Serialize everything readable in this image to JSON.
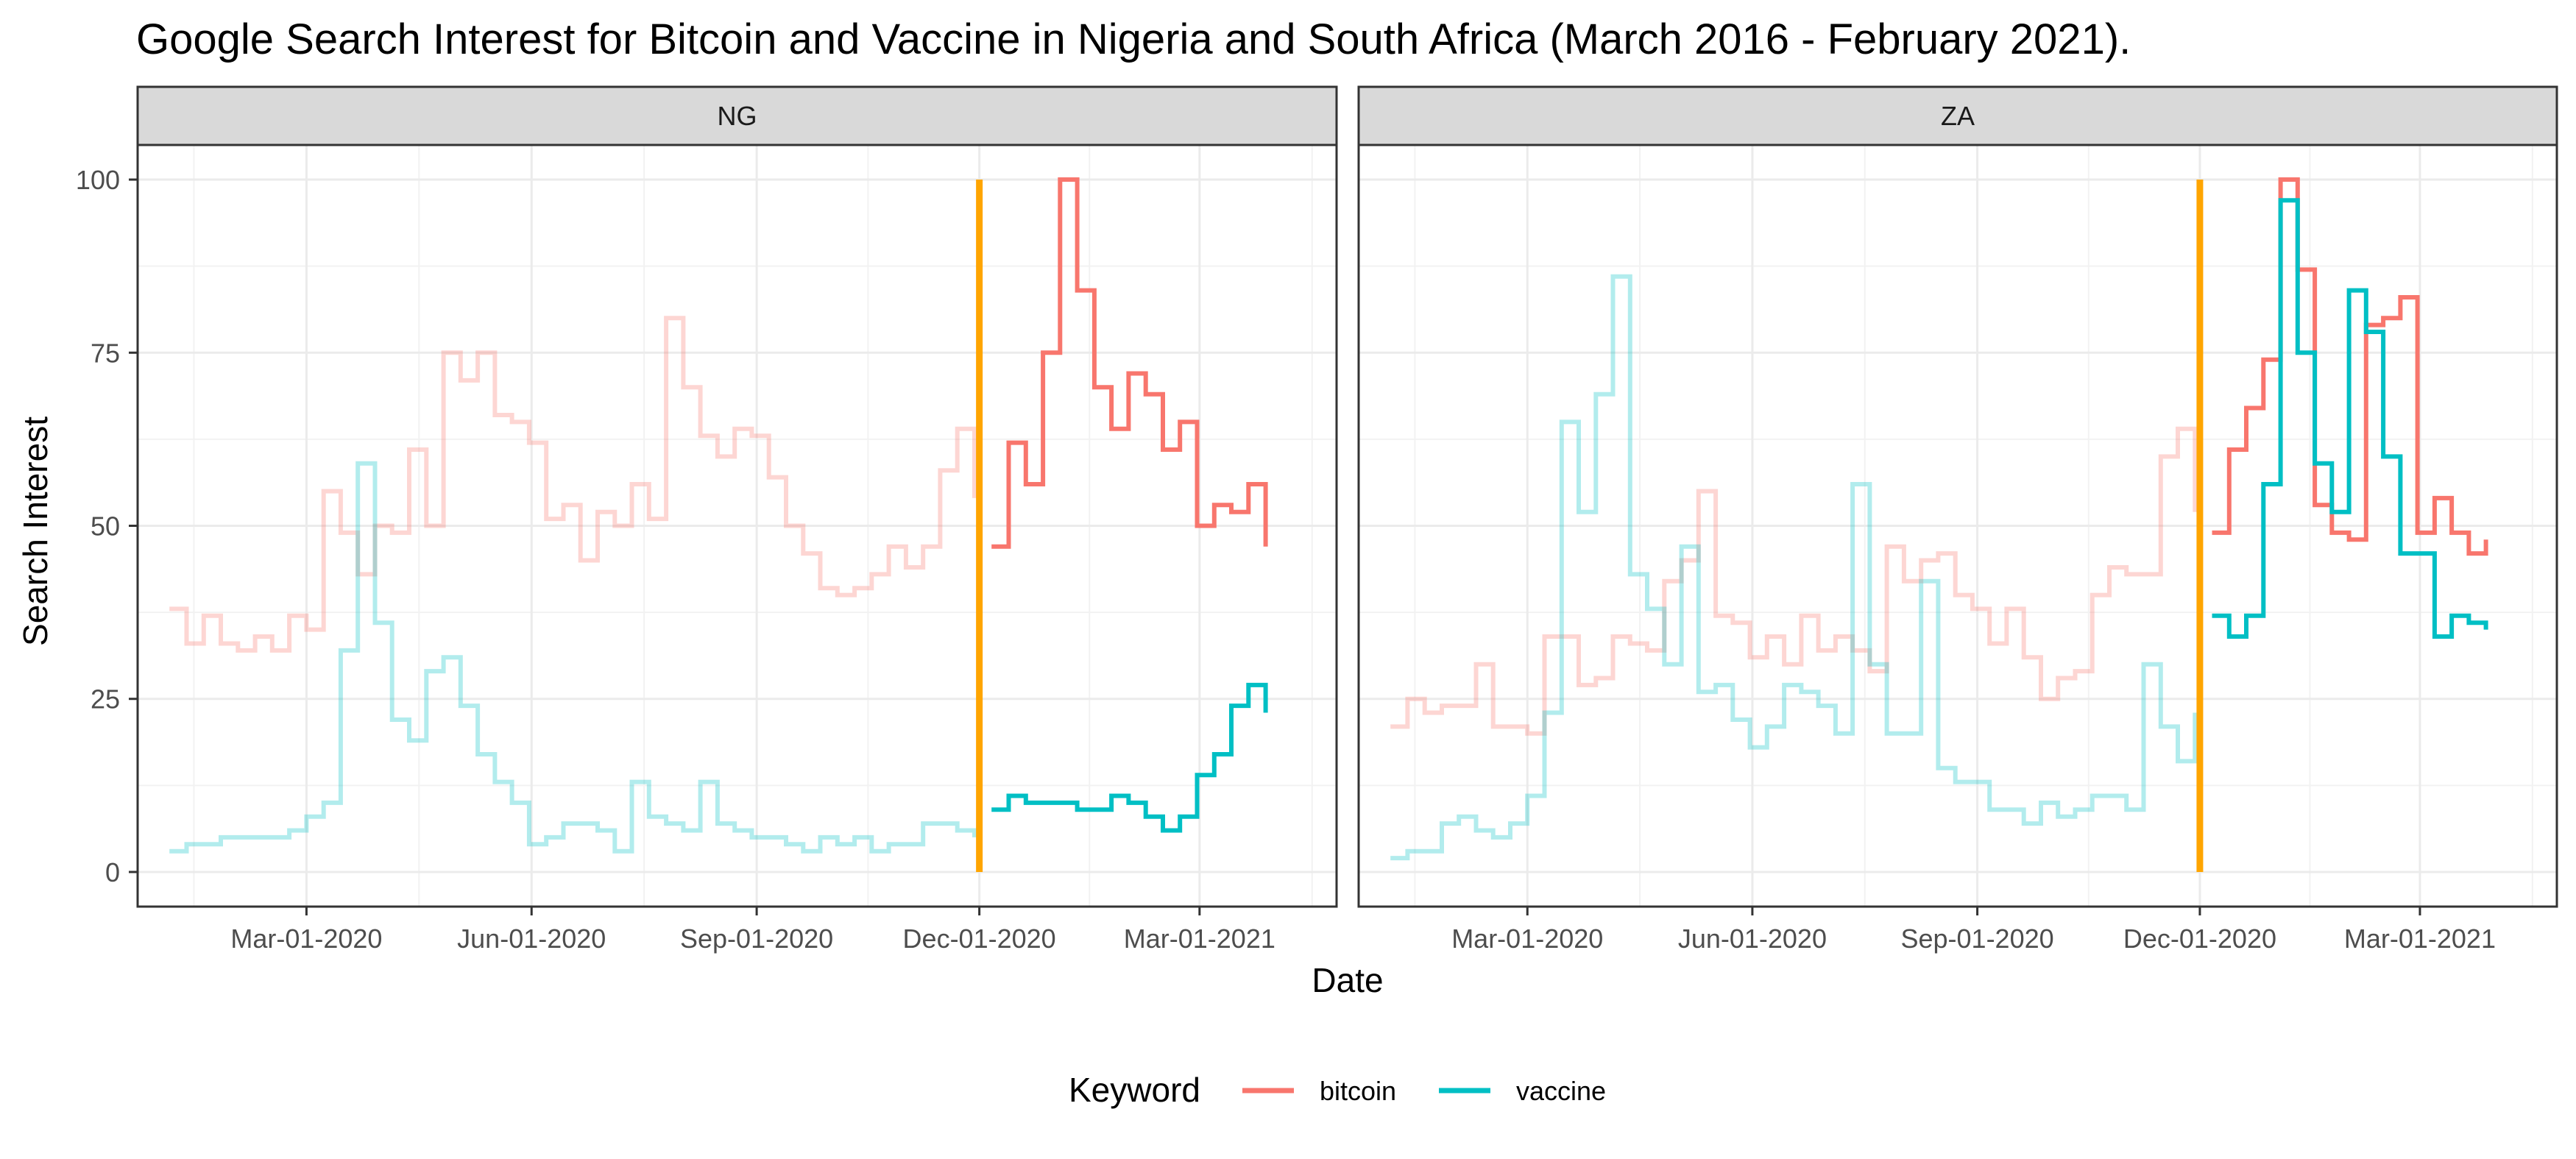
{
  "chart_data": {
    "type": "line",
    "step": true,
    "title": "Google Search Interest for Bitcoin and Vaccine in Nigeria and South Africa (March 2016 - February 2021).",
    "xlabel": "Date",
    "ylabel": "Search Interest",
    "x_range": [
      "2019-12-23",
      "2021-04-26"
    ],
    "ylim": [
      -5,
      105
    ],
    "x_ticks": [
      {
        "date": "2020-03-01",
        "label": "Mar-01-2020"
      },
      {
        "date": "2020-06-01",
        "label": "Jun-01-2020"
      },
      {
        "date": "2020-09-01",
        "label": "Sep-01-2020"
      },
      {
        "date": "2020-12-01",
        "label": "Dec-01-2020"
      },
      {
        "date": "2021-03-01",
        "label": "Mar-01-2021"
      }
    ],
    "y_ticks": [
      0,
      25,
      50,
      75,
      100
    ],
    "grid": true,
    "reference_line": {
      "date": "2020-12-01",
      "from": 0,
      "to": 100,
      "color": "#FFA500"
    },
    "legend": {
      "title": "Keyword",
      "position": "bottom",
      "entries": [
        {
          "label": "bitcoin",
          "color": "#F8766D"
        },
        {
          "label": "vaccine",
          "color": "#00BFC4"
        }
      ]
    },
    "colors": {
      "bitcoin": "#F8766D",
      "vaccine": "#00BFC4",
      "faded_opacity": 0.3
    },
    "panels": [
      {
        "label": "NG",
        "series": [
          {
            "name": "bitcoin",
            "x_start": "2020-01-05",
            "values": [
              38,
              33,
              37,
              33,
              32,
              34,
              32,
              37,
              35,
              55,
              49,
              43,
              50,
              49,
              61,
              50,
              75,
              71,
              75,
              66,
              65,
              62,
              51,
              53,
              45,
              52,
              50,
              56,
              51,
              80,
              70,
              63,
              60,
              64,
              63,
              57,
              50,
              46,
              41,
              40,
              41,
              43,
              47,
              44,
              47,
              58,
              64,
              54,
              47,
              62,
              56,
              75,
              100,
              84,
              70,
              64,
              72,
              69,
              61,
              65,
              50,
              53,
              52,
              56,
              47
            ]
          },
          {
            "name": "vaccine",
            "x_start": "2020-01-05",
            "values": [
              3,
              4,
              4,
              5,
              5,
              5,
              5,
              6,
              8,
              10,
              32,
              59,
              36,
              22,
              19,
              29,
              31,
              24,
              17,
              13,
              10,
              4,
              5,
              7,
              7,
              6,
              3,
              13,
              8,
              7,
              6,
              13,
              7,
              6,
              5,
              5,
              4,
              3,
              5,
              4,
              5,
              3,
              4,
              4,
              7,
              7,
              6,
              5,
              9,
              11,
              10,
              10,
              10,
              9,
              9,
              11,
              10,
              8,
              6,
              8,
              14,
              17,
              24,
              27,
              23
            ]
          }
        ]
      },
      {
        "label": "ZA",
        "series": [
          {
            "name": "bitcoin",
            "x_start": "2020-01-05",
            "values": [
              21,
              25,
              23,
              24,
              24,
              30,
              21,
              21,
              20,
              34,
              34,
              27,
              28,
              34,
              33,
              32,
              42,
              45,
              55,
              37,
              36,
              31,
              34,
              30,
              37,
              32,
              34,
              32,
              29,
              47,
              42,
              45,
              46,
              40,
              38,
              33,
              38,
              31,
              25,
              28,
              29,
              40,
              44,
              43,
              43,
              60,
              64,
              52,
              49,
              61,
              67,
              74,
              100,
              87,
              53,
              49,
              48,
              79,
              80,
              83,
              49,
              54,
              49,
              46,
              48
            ]
          },
          {
            "name": "vaccine",
            "x_start": "2020-01-05",
            "values": [
              2,
              3,
              3,
              7,
              8,
              6,
              5,
              7,
              11,
              23,
              65,
              52,
              69,
              86,
              43,
              38,
              30,
              47,
              26,
              27,
              22,
              18,
              21,
              27,
              26,
              24,
              20,
              56,
              30,
              20,
              20,
              42,
              15,
              13,
              13,
              9,
              9,
              7,
              10,
              8,
              9,
              11,
              11,
              9,
              30,
              21,
              16,
              23,
              37,
              34,
              37,
              56,
              97,
              75,
              59,
              52,
              84,
              78,
              60,
              46,
              46,
              34,
              37,
              36,
              35
            ]
          }
        ]
      }
    ]
  }
}
